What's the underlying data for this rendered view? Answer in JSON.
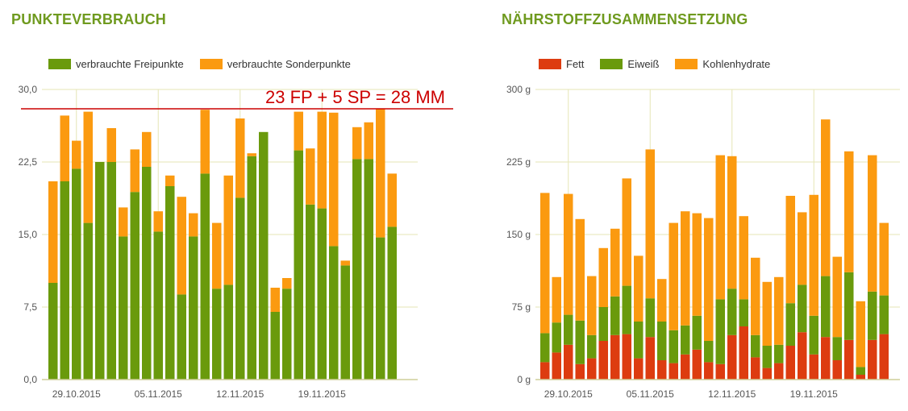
{
  "colors": {
    "title": "#6f9a1f",
    "green": "#6a9a0c",
    "orange": "#fb9a10",
    "red": "#dd3c10",
    "grid": "#e6e6b6",
    "annotation": "#cc0000"
  },
  "chart_data": [
    {
      "type": "bar",
      "stacked": true,
      "title": "PUNKTEVERBRAUCH",
      "ylim": [
        0,
        30
      ],
      "y_ticks": [
        "0,0",
        "7,5",
        "15,0",
        "22,5",
        "30,0"
      ],
      "x_ticks": [
        "29.10.2015",
        "05.11.2015",
        "12.11.2015",
        "19.11.2015"
      ],
      "grid": true,
      "legend_position": "top-left",
      "series": [
        {
          "name": "verbrauchte Freipunkte",
          "color": "#6a9a0c",
          "values": [
            10.0,
            20.5,
            21.8,
            16.2,
            22.5,
            22.5,
            14.8,
            19.4,
            22.0,
            15.3,
            20.0,
            8.8,
            14.8,
            21.3,
            9.4,
            9.8,
            18.8,
            23.1,
            25.6,
            7.0,
            9.4,
            23.7,
            18.1,
            17.7,
            13.8,
            11.8,
            22.8,
            22.8,
            14.7,
            15.8
          ]
        },
        {
          "name": "verbrauchte Sonderpunkte",
          "color": "#fb9a10",
          "values": [
            10.5,
            6.8,
            2.9,
            11.5,
            0,
            3.5,
            3.0,
            4.4,
            3.6,
            2.1,
            1.1,
            10.1,
            2.4,
            6.6,
            6.8,
            11.3,
            8.2,
            0.3,
            0,
            2.5,
            1.1,
            4.0,
            5.8,
            10.0,
            13.8,
            0.5,
            3.3,
            3.8,
            13.3,
            5.5
          ]
        }
      ],
      "annotation": {
        "text": "23 FP + 5 SP = 28 MM",
        "y": 28
      }
    },
    {
      "type": "bar",
      "stacked": true,
      "title": "NÄHRSTOFFZUSAMMENSETZUNG",
      "ylim": [
        0,
        300
      ],
      "y_ticks": [
        "0 g",
        "75 g",
        "150 g",
        "225 g",
        "300 g"
      ],
      "x_ticks": [
        "29.10.2015",
        "05.11.2015",
        "12.11.2015",
        "19.11.2015"
      ],
      "grid": true,
      "legend_position": "top-left",
      "series": [
        {
          "name": "Fett",
          "color": "#dd3c10",
          "values": [
            18,
            28,
            36,
            16,
            22,
            40,
            46,
            47,
            22,
            44,
            20,
            17,
            26,
            31,
            18,
            16,
            46,
            55,
            23,
            12,
            17,
            35,
            49,
            26,
            44,
            20,
            41,
            5,
            41,
            47
          ]
        },
        {
          "name": "Eiweiß",
          "color": "#6a9a0c",
          "values": [
            30,
            31,
            31,
            45,
            24,
            35,
            40,
            50,
            38,
            40,
            40,
            34,
            30,
            35,
            22,
            67,
            48,
            28,
            23,
            23,
            19,
            44,
            49,
            40,
            63,
            24,
            70,
            8,
            50,
            40
          ]
        },
        {
          "name": "Kohlenhydrate",
          "color": "#fb9a10",
          "values": [
            145,
            47,
            125,
            105,
            61,
            61,
            70,
            111,
            68,
            154,
            44,
            111,
            118,
            106,
            127,
            149,
            137,
            86,
            80,
            66,
            70,
            111,
            75,
            125,
            162,
            83,
            125,
            68,
            141,
            75
          ]
        }
      ]
    }
  ]
}
